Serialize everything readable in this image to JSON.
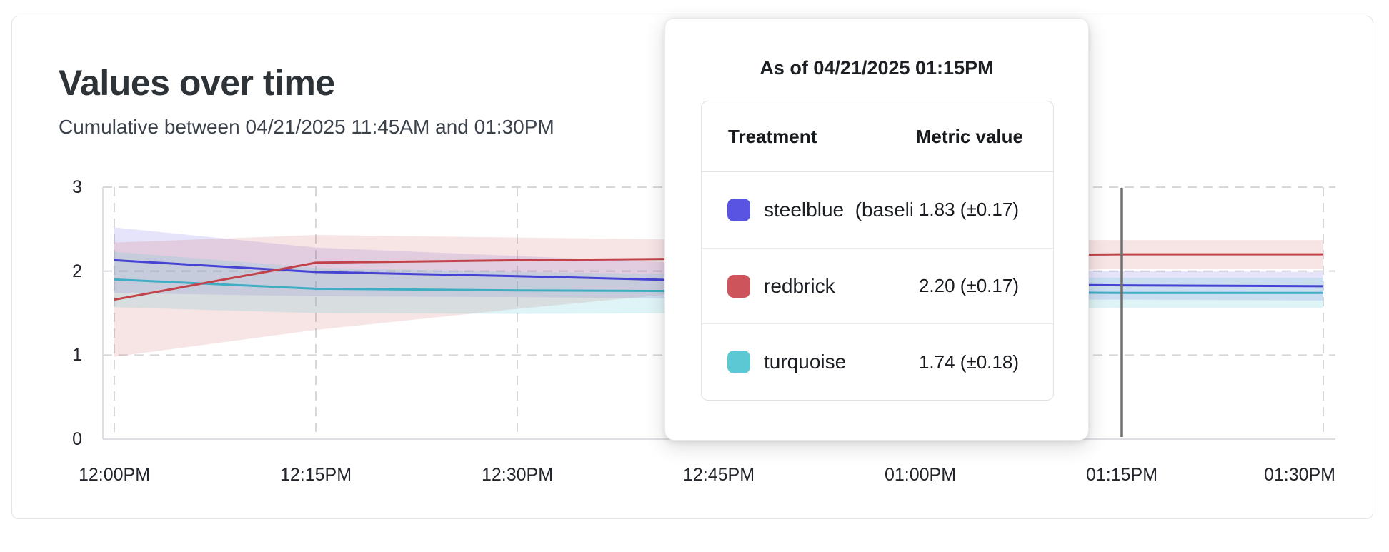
{
  "card": {
    "title": "Values over time",
    "subtitle": "Cumulative between 04/21/2025 11:45AM and 01:30PM"
  },
  "chart_data": {
    "type": "line",
    "title": "Values over time",
    "xlabel": "",
    "ylabel": "",
    "x_labels": [
      "12:00PM",
      "12:15PM",
      "12:30PM",
      "12:45PM",
      "01:00PM",
      "01:15PM",
      "01:30PM"
    ],
    "y_ticks": [
      0,
      1,
      2,
      3
    ],
    "ylim": [
      0,
      3
    ],
    "grid": "dashed",
    "grid_color": "#d7d7db",
    "axis_color": "#dfdfe3",
    "crosshair": {
      "x_label": "01:15PM",
      "x_index": 5,
      "color": "#6f6f6f"
    },
    "series": [
      {
        "name": "steelblue (baseline)",
        "color": "#4643d4",
        "band_color": "rgba(93,90,224,0.16)",
        "values": [
          2.13,
          1.99,
          1.94,
          1.88,
          1.85,
          1.83,
          1.82
        ],
        "upper": [
          2.52,
          2.28,
          2.18,
          2.08,
          2.02,
          2.0,
          1.99
        ],
        "lower": [
          1.74,
          1.7,
          1.69,
          1.67,
          1.66,
          1.66,
          1.65
        ]
      },
      {
        "name": "redbrick",
        "color": "#c2424a",
        "band_color": "rgba(205,84,90,0.16)",
        "values": [
          1.66,
          2.1,
          2.13,
          2.15,
          2.18,
          2.2,
          2.2
        ],
        "upper": [
          2.34,
          2.43,
          2.4,
          2.37,
          2.37,
          2.37,
          2.37
        ],
        "lower": [
          0.98,
          1.3,
          1.55,
          1.78,
          1.95,
          2.03,
          2.03
        ]
      },
      {
        "name": "turquoise",
        "color": "#3fadc3",
        "band_color": "rgba(95,198,212,0.20)",
        "values": [
          1.9,
          1.79,
          1.77,
          1.76,
          1.75,
          1.74,
          1.74
        ],
        "upper": [
          2.23,
          2.04,
          1.99,
          1.96,
          1.94,
          1.92,
          1.92
        ],
        "lower": [
          1.57,
          1.5,
          1.49,
          1.5,
          1.53,
          1.56,
          1.56
        ]
      }
    ]
  },
  "tooltip": {
    "heading": "As of 04/21/2025 01:15PM",
    "columns": {
      "treatment": "Treatment",
      "metric": "Metric value"
    },
    "rows": [
      {
        "label": "steelblue  (baseli",
        "value": "1.83 (±0.17)",
        "color": "#5955e2"
      },
      {
        "label": "redbrick",
        "value": "2.20 (±0.17)",
        "color": "#cd545a"
      },
      {
        "label": "turquoise",
        "value": "1.74 (±0.18)",
        "color": "#5bc8d4"
      }
    ]
  }
}
